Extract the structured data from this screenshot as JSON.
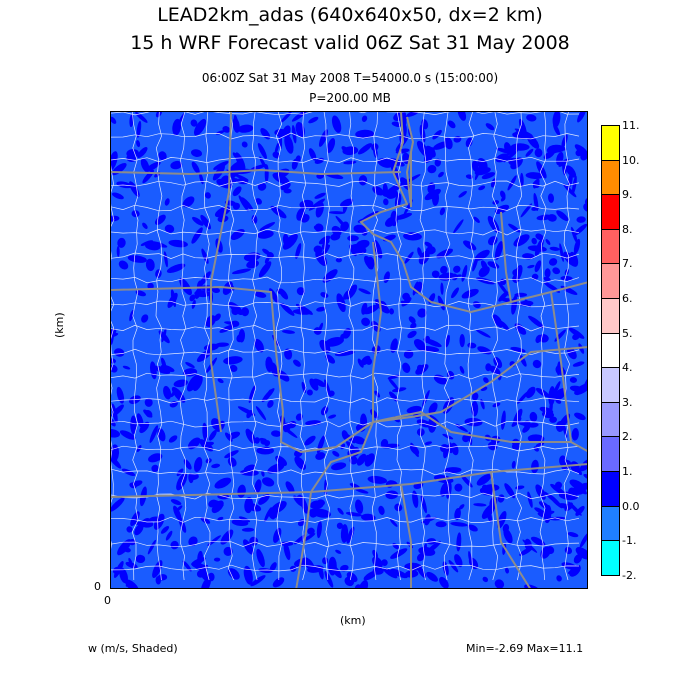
{
  "header": {
    "title_line1": "LEAD2km_adas (640x640x50, dx=2 km)",
    "title_line2": "15 h WRF Forecast valid 06Z Sat 31 May 2008",
    "time_line": "06:00Z Sat 31 May 2008     T=54000.0 s (15:00:00)",
    "level_line": "P=200.00 MB"
  },
  "axes": {
    "y_label": "(km)",
    "x_label": "(km)",
    "x_origin": "0",
    "y_origin": "0"
  },
  "footer": {
    "variable": "w (m/s, Shaded)",
    "minmax": "Min=-2.69 Max=11.1"
  },
  "colorbar": {
    "labels": [
      "11.",
      "10.",
      "9.",
      "8.",
      "7.",
      "6.",
      "5.",
      "4.",
      "3.",
      "2.",
      "1.",
      "0.0",
      "-1.",
      "-2."
    ],
    "colors": [
      "#ffff00",
      "#ff8c00",
      "#ff0000",
      "#ff6060",
      "#ff9898",
      "#ffc8c8",
      "#ffffff",
      "#c8c8ff",
      "#9898ff",
      "#6a6aff",
      "#0000ff",
      "#1f7fff",
      "#00ffff"
    ]
  },
  "map": {
    "background_color": "#1a5cff",
    "shade_dark_color": "#0000ff",
    "county_color": "#ffffff",
    "state_color": "#8c8c8c"
  }
}
